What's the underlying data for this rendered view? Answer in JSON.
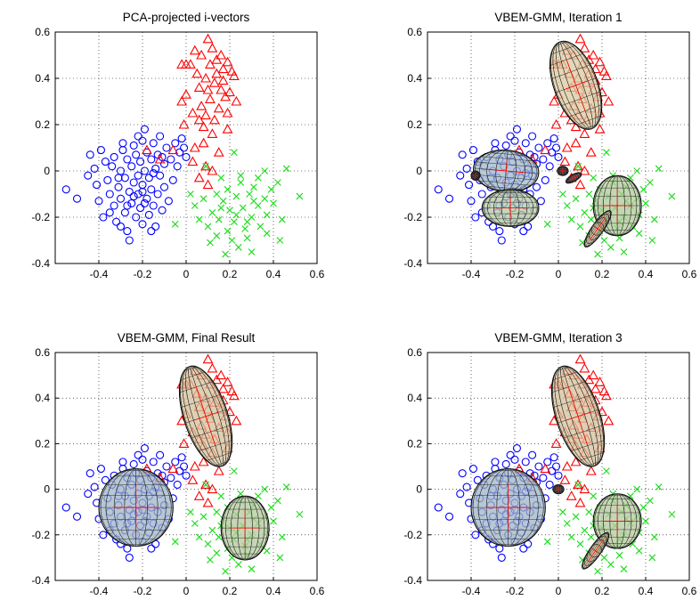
{
  "chart_data": [
    {
      "type": "scatter",
      "title": "PCA-projected i-vectors",
      "xlim": [
        -0.6,
        0.6
      ],
      "ylim": [
        -0.4,
        0.6
      ],
      "xticks": [
        "-0.4",
        "-0.2",
        "0",
        "0.2",
        "0.4",
        "0.6"
      ],
      "yticks": [
        "-0.4",
        "-0.2",
        "0",
        "0.2",
        "0.4",
        "0.6"
      ],
      "grid": true,
      "ellipses": []
    },
    {
      "type": "scatter",
      "title": "VBEM-GMM, Iteration 1",
      "xlim": [
        -0.6,
        0.6
      ],
      "ylim": [
        -0.4,
        0.6
      ],
      "xticks": [
        "-0.4",
        "-0.2",
        "0",
        "0.2",
        "0.4",
        "0.6"
      ],
      "yticks": [
        "-0.4",
        "-0.2",
        "0",
        "0.2",
        "0.4",
        "0.6"
      ],
      "grid": true,
      "ellipses": [
        {
          "cx": 0.08,
          "cy": 0.37,
          "rx": 0.1,
          "ry": 0.2,
          "angle": -20,
          "shade": "#d9c9a0"
        },
        {
          "cx": -0.24,
          "cy": 0.0,
          "rx": 0.15,
          "ry": 0.09,
          "angle": 5,
          "shade": "#9fb8c8"
        },
        {
          "cx": -0.22,
          "cy": -0.16,
          "rx": 0.13,
          "ry": 0.08,
          "angle": 0,
          "shade": "#b5c9a0"
        },
        {
          "cx": 0.27,
          "cy": -0.15,
          "rx": 0.11,
          "ry": 0.13,
          "angle": 0,
          "shade": "#b0c898"
        },
        {
          "cx": 0.18,
          "cy": -0.25,
          "rx": 0.1,
          "ry": 0.025,
          "angle": -55,
          "shade": "#c8b890"
        },
        {
          "cx": 0.07,
          "cy": -0.03,
          "rx": 0.04,
          "ry": 0.015,
          "angle": -30,
          "shade": "#555555"
        },
        {
          "cx": 0.02,
          "cy": 0.0,
          "rx": 0.025,
          "ry": 0.02,
          "angle": 0,
          "shade": "#333333"
        },
        {
          "cx": -0.38,
          "cy": -0.02,
          "rx": 0.02,
          "ry": 0.02,
          "angle": 0,
          "shade": "#333333"
        }
      ]
    },
    {
      "type": "scatter",
      "title": "VBEM-GMM, Final Result",
      "xlim": [
        -0.6,
        0.6
      ],
      "ylim": [
        -0.4,
        0.6
      ],
      "xticks": [
        "-0.4",
        "-0.2",
        "0",
        "0.2",
        "0.4",
        "0.6"
      ],
      "yticks": [
        "-0.4",
        "-0.2",
        "0",
        "0.2",
        "0.4",
        "0.6"
      ],
      "grid": true,
      "ellipses": [
        {
          "cx": 0.09,
          "cy": 0.32,
          "rx": 0.1,
          "ry": 0.23,
          "angle": -18,
          "shade": "#d4c09a"
        },
        {
          "cx": -0.23,
          "cy": -0.08,
          "rx": 0.17,
          "ry": 0.17,
          "angle": 0,
          "shade": "#9fb4c4"
        },
        {
          "cx": 0.27,
          "cy": -0.17,
          "rx": 0.11,
          "ry": 0.14,
          "angle": 0,
          "shade": "#b4c89c"
        }
      ]
    },
    {
      "type": "scatter",
      "title": "VBEM-GMM, Iteration 3",
      "xlim": [
        -0.6,
        0.6
      ],
      "ylim": [
        -0.4,
        0.6
      ],
      "xticks": [
        "-0.4",
        "-0.2",
        "0",
        "0.2",
        "0.4",
        "0.6"
      ],
      "yticks": [
        "-0.4",
        "-0.2",
        "0",
        "0.2",
        "0.4",
        "0.6"
      ],
      "grid": true,
      "ellipses": [
        {
          "cx": 0.09,
          "cy": 0.32,
          "rx": 0.1,
          "ry": 0.23,
          "angle": -18,
          "shade": "#d4c09a"
        },
        {
          "cx": -0.23,
          "cy": -0.08,
          "rx": 0.17,
          "ry": 0.17,
          "angle": 0,
          "shade": "#9fb4c4"
        },
        {
          "cx": 0.27,
          "cy": -0.14,
          "rx": 0.11,
          "ry": 0.12,
          "angle": 0,
          "shade": "#b4c89c"
        },
        {
          "cx": 0.17,
          "cy": -0.27,
          "rx": 0.1,
          "ry": 0.025,
          "angle": -55,
          "shade": "#c8b890"
        },
        {
          "cx": 0.0,
          "cy": 0.0,
          "rx": 0.025,
          "ry": 0.02,
          "angle": 0,
          "shade": "#333333"
        }
      ]
    }
  ],
  "series_shared": {
    "circles": {
      "marker": "circle",
      "color": "#0000ff",
      "points": [
        [
          -0.55,
          -0.08
        ],
        [
          -0.5,
          -0.12
        ],
        [
          -0.45,
          -0.02
        ],
        [
          -0.44,
          0.07
        ],
        [
          -0.42,
          0.01
        ],
        [
          -0.41,
          -0.06
        ],
        [
          -0.4,
          -0.13
        ],
        [
          -0.39,
          0.09
        ],
        [
          -0.38,
          -0.2
        ],
        [
          -0.37,
          0.04
        ],
        [
          -0.36,
          -0.04
        ],
        [
          -0.35,
          -0.1
        ],
        [
          -0.34,
          0.02
        ],
        [
          -0.33,
          -0.15
        ],
        [
          -0.33,
          0.06
        ],
        [
          -0.32,
          -0.22
        ],
        [
          -0.31,
          -0.07
        ],
        [
          -0.3,
          0.0
        ],
        [
          -0.3,
          -0.12
        ],
        [
          -0.29,
          0.09
        ],
        [
          -0.28,
          -0.03
        ],
        [
          -0.28,
          -0.18
        ],
        [
          -0.27,
          0.05
        ],
        [
          -0.27,
          -0.26
        ],
        [
          -0.26,
          -0.09
        ],
        [
          -0.25,
          0.02
        ],
        [
          -0.25,
          -0.14
        ],
        [
          -0.24,
          0.11
        ],
        [
          -0.24,
          -0.05
        ],
        [
          -0.23,
          -0.2
        ],
        [
          -0.23,
          0.07
        ],
        [
          -0.22,
          -0.02
        ],
        [
          -0.22,
          -0.1
        ],
        [
          -0.21,
          0.04
        ],
        [
          -0.21,
          -0.16
        ],
        [
          -0.2,
          0.13
        ],
        [
          -0.2,
          -0.06
        ],
        [
          -0.2,
          -0.23
        ],
        [
          -0.19,
          0.18
        ],
        [
          -0.19,
          0.0
        ],
        [
          -0.18,
          -0.12
        ],
        [
          -0.18,
          0.08
        ],
        [
          -0.17,
          -0.03
        ],
        [
          -0.17,
          -0.19
        ],
        [
          -0.16,
          0.05
        ],
        [
          -0.16,
          -0.08
        ],
        [
          -0.15,
          0.12
        ],
        [
          -0.15,
          -0.15
        ],
        [
          -0.14,
          0.01
        ],
        [
          -0.14,
          -0.24
        ],
        [
          -0.13,
          0.07
        ],
        [
          -0.13,
          -0.1
        ],
        [
          -0.12,
          -0.02
        ],
        [
          -0.12,
          0.15
        ],
        [
          -0.11,
          -0.17
        ],
        [
          -0.1,
          0.03
        ],
        [
          -0.1,
          -0.07
        ],
        [
          -0.09,
          0.1
        ],
        [
          -0.08,
          -0.13
        ],
        [
          -0.07,
          0.05
        ],
        [
          -0.06,
          -0.04
        ],
        [
          -0.05,
          0.12
        ],
        [
          -0.04,
          0.02
        ],
        [
          -0.03,
          0.08
        ],
        [
          -0.02,
          0.14
        ],
        [
          -0.01,
          0.1
        ],
        [
          0.0,
          0.06
        ],
        [
          -0.26,
          -0.3
        ],
        [
          -0.3,
          -0.24
        ],
        [
          -0.35,
          -0.18
        ],
        [
          -0.29,
          0.12
        ],
        [
          -0.22,
          0.15
        ],
        [
          -0.16,
          -0.26
        ],
        [
          -0.2,
          -0.09
        ],
        [
          -0.24,
          -0.11
        ],
        [
          -0.27,
          -0.15
        ],
        [
          -0.31,
          -0.03
        ],
        [
          -0.19,
          -0.14
        ],
        [
          -0.15,
          -0.01
        ],
        [
          -0.11,
          0.06
        ]
      ]
    },
    "triangles": {
      "marker": "triangle",
      "color": "#ff0000",
      "points": [
        [
          0.1,
          0.57
        ],
        [
          0.04,
          0.52
        ],
        [
          0.12,
          0.53
        ],
        [
          0.16,
          0.5
        ],
        [
          0.07,
          0.5
        ],
        [
          0.14,
          0.48
        ],
        [
          0.19,
          0.47
        ],
        [
          -0.02,
          0.46
        ],
        [
          0.02,
          0.46
        ],
        [
          0.0,
          0.46
        ],
        [
          0.11,
          0.46
        ],
        [
          0.17,
          0.44
        ],
        [
          0.21,
          0.43
        ],
        [
          0.22,
          0.41
        ],
        [
          0.09,
          0.4
        ],
        [
          0.13,
          0.38
        ],
        [
          0.16,
          0.35
        ],
        [
          0.2,
          0.34
        ],
        [
          0.06,
          0.36
        ],
        [
          0.18,
          0.32
        ],
        [
          0.11,
          0.31
        ],
        [
          0.23,
          0.3
        ],
        [
          -0.02,
          0.3
        ],
        [
          0.07,
          0.28
        ],
        [
          0.15,
          0.27
        ],
        [
          0.03,
          0.25
        ],
        [
          0.09,
          0.24
        ],
        [
          0.13,
          0.22
        ],
        [
          0.06,
          0.22
        ],
        [
          -0.01,
          0.2
        ],
        [
          0.19,
          0.18
        ],
        [
          0.12,
          0.16
        ],
        [
          0.08,
          0.12
        ],
        [
          0.04,
          0.1
        ],
        [
          0.15,
          0.08
        ],
        [
          -0.06,
          0.09
        ],
        [
          0.03,
          0.04
        ],
        [
          0.09,
          0.02
        ],
        [
          0.12,
          0.0
        ],
        [
          0.06,
          -0.03
        ],
        [
          0.1,
          -0.06
        ],
        [
          -0.12,
          0.05
        ],
        [
          -0.18,
          0.09
        ],
        [
          0.0,
          0.33
        ],
        [
          0.05,
          0.42
        ],
        [
          0.14,
          0.42
        ],
        [
          0.1,
          0.35
        ],
        [
          0.17,
          0.39
        ],
        [
          0.19,
          0.25
        ],
        [
          0.08,
          0.19
        ]
      ]
    },
    "crosses": {
      "marker": "cross",
      "color": "#22dd22",
      "points": [
        [
          0.09,
          0.02
        ],
        [
          0.22,
          0.08
        ],
        [
          0.36,
          0.0
        ],
        [
          0.33,
          -0.03
        ],
        [
          0.46,
          0.01
        ],
        [
          0.42,
          -0.05
        ],
        [
          0.31,
          -0.07
        ],
        [
          0.25,
          -0.05
        ],
        [
          0.19,
          -0.08
        ],
        [
          0.14,
          -0.1
        ],
        [
          0.08,
          -0.12
        ],
        [
          0.17,
          -0.13
        ],
        [
          0.23,
          -0.11
        ],
        [
          0.29,
          -0.1
        ],
        [
          0.36,
          -0.12
        ],
        [
          0.52,
          -0.11
        ],
        [
          0.4,
          -0.14
        ],
        [
          0.33,
          -0.15
        ],
        [
          0.26,
          -0.16
        ],
        [
          0.2,
          -0.17
        ],
        [
          0.12,
          -0.18
        ],
        [
          0.04,
          -0.15
        ],
        [
          0.15,
          -0.21
        ],
        [
          0.22,
          -0.22
        ],
        [
          0.3,
          -0.2
        ],
        [
          0.37,
          -0.19
        ],
        [
          0.44,
          -0.21
        ],
        [
          0.34,
          -0.24
        ],
        [
          0.27,
          -0.25
        ],
        [
          0.19,
          -0.26
        ],
        [
          0.1,
          -0.24
        ],
        [
          0.14,
          -0.28
        ],
        [
          0.21,
          -0.3
        ],
        [
          0.28,
          -0.29
        ],
        [
          0.37,
          -0.27
        ],
        [
          0.24,
          -0.33
        ],
        [
          0.3,
          -0.35
        ],
        [
          0.18,
          -0.36
        ],
        [
          0.11,
          -0.31
        ],
        [
          -0.05,
          -0.23
        ],
        [
          0.02,
          -0.1
        ],
        [
          0.06,
          -0.21
        ],
        [
          0.43,
          -0.3
        ],
        [
          0.39,
          -0.08
        ],
        [
          0.16,
          -0.03
        ],
        [
          0.25,
          -0.02
        ],
        [
          0.31,
          -0.13
        ],
        [
          0.23,
          -0.19
        ],
        [
          0.16,
          -0.16
        ],
        [
          0.28,
          -0.22
        ]
      ]
    }
  }
}
